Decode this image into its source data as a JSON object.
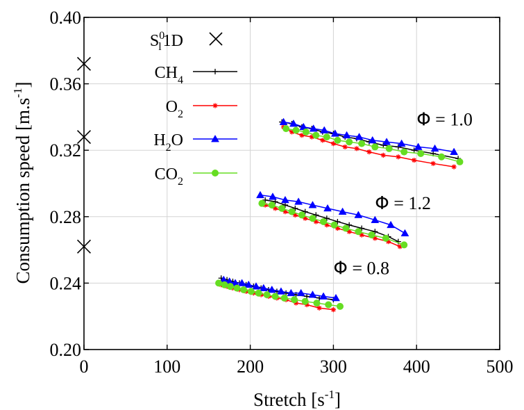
{
  "chart_data": {
    "type": "line",
    "title": "",
    "xlabel": "Stretch [s",
    "xlabel_sup": "-1",
    "xlabel_end": "]",
    "ylabel": "Consumption speed  [m.s",
    "ylabel_sup": "-1",
    "ylabel_end": "]",
    "xlim": [
      0,
      500
    ],
    "ylim": [
      0.2,
      0.4
    ],
    "xticks": [
      0,
      100,
      200,
      300,
      400,
      500
    ],
    "xtick_labels": [
      "0",
      "100",
      "200",
      "300",
      "400",
      "500"
    ],
    "yticks": [
      0.2,
      0.24,
      0.28,
      0.32,
      0.36,
      0.4
    ],
    "ytick_labels": [
      "0.20",
      "0.24",
      "0.28",
      "0.32",
      "0.36",
      "0.40"
    ],
    "grid": true,
    "legend_position": "top-left",
    "legend": [
      {
        "key": "s1d",
        "base": "S",
        "sup": "0",
        "sub": "l",
        "tail": "1D",
        "marker": "cross",
        "color": "#000000"
      },
      {
        "key": "ch4",
        "base": "CH",
        "sub": "4",
        "marker": "plus",
        "color": "#000000"
      },
      {
        "key": "o2",
        "base": "O",
        "sub": "2",
        "marker": "star",
        "color": "#ff0000"
      },
      {
        "key": "h2o",
        "base": "H",
        "sub": "2",
        "tail": "O",
        "marker": "triangle",
        "color": "#0000ff"
      },
      {
        "key": "co2",
        "base": "CO",
        "sub": "2",
        "marker": "circle",
        "color": "#66dd22"
      }
    ],
    "series": [
      {
        "name": "S_l^0 1D",
        "key": "s1d",
        "marker": "cross",
        "color": "#000000",
        "line": false,
        "x": [
          0,
          0,
          0
        ],
        "y": [
          0.372,
          0.328,
          0.262
        ]
      },
      {
        "name": "CH4",
        "key": "ch4",
        "group": "1.0",
        "marker": "plus",
        "color": "#000000",
        "line": true,
        "x": [
          238,
          250,
          262,
          274,
          287,
          300,
          314,
          328,
          343,
          360,
          378,
          397,
          420,
          450
        ],
        "y": [
          0.337,
          0.336,
          0.334,
          0.333,
          0.331,
          0.33,
          0.328,
          0.327,
          0.325,
          0.323,
          0.322,
          0.32,
          0.318,
          0.315
        ]
      },
      {
        "name": "O2",
        "key": "o2",
        "group": "1.0",
        "marker": "star",
        "color": "#ff0000",
        "line": true,
        "x": [
          240,
          250,
          262,
          274,
          287,
          300,
          314,
          328,
          343,
          360,
          378,
          397,
          420,
          445
        ],
        "y": [
          0.334,
          0.331,
          0.329,
          0.328,
          0.326,
          0.324,
          0.322,
          0.321,
          0.319,
          0.317,
          0.316,
          0.314,
          0.312,
          0.31
        ]
      },
      {
        "name": "H2O",
        "key": "h2o",
        "group": "1.0",
        "marker": "triangle",
        "color": "#0000ff",
        "line": true,
        "x": [
          240,
          252,
          264,
          276,
          289,
          302,
          316,
          331,
          347,
          364,
          382,
          402,
          422,
          445
        ],
        "y": [
          0.337,
          0.336,
          0.334,
          0.333,
          0.332,
          0.33,
          0.329,
          0.328,
          0.326,
          0.325,
          0.324,
          0.322,
          0.321,
          0.319
        ]
      },
      {
        "name": "CO2",
        "key": "co2",
        "group": "1.0",
        "marker": "circle",
        "color": "#66dd22",
        "line": true,
        "x": [
          243,
          255,
          267,
          279,
          292,
          305,
          319,
          334,
          350,
          367,
          385,
          405,
          430,
          452
        ],
        "y": [
          0.333,
          0.332,
          0.331,
          0.329,
          0.328,
          0.326,
          0.325,
          0.324,
          0.322,
          0.321,
          0.319,
          0.318,
          0.316,
          0.313
        ]
      },
      {
        "name": "CH4",
        "key": "ch4",
        "group": "1.2",
        "marker": "plus",
        "color": "#000000",
        "line": true,
        "x": [
          218,
          230,
          242,
          254,
          266,
          279,
          292,
          305,
          319,
          334,
          350,
          366,
          378
        ],
        "y": [
          0.29,
          0.289,
          0.287,
          0.285,
          0.283,
          0.281,
          0.279,
          0.277,
          0.275,
          0.273,
          0.271,
          0.268,
          0.265
        ]
      },
      {
        "name": "O2",
        "key": "o2",
        "group": "1.2",
        "marker": "star",
        "color": "#ff0000",
        "line": true,
        "x": [
          218,
          230,
          242,
          254,
          266,
          279,
          292,
          305,
          319,
          334,
          350,
          366,
          380
        ],
        "y": [
          0.287,
          0.285,
          0.283,
          0.281,
          0.279,
          0.277,
          0.275,
          0.273,
          0.271,
          0.269,
          0.267,
          0.265,
          0.262
        ]
      },
      {
        "name": "H2O",
        "key": "h2o",
        "group": "1.2",
        "marker": "triangle",
        "color": "#0000ff",
        "line": true,
        "x": [
          212,
          227,
          242,
          258,
          275,
          293,
          311,
          330,
          350,
          369,
          386
        ],
        "y": [
          0.293,
          0.292,
          0.29,
          0.289,
          0.287,
          0.285,
          0.283,
          0.281,
          0.278,
          0.275,
          0.27
        ]
      },
      {
        "name": "CO2",
        "key": "co2",
        "group": "1.2",
        "marker": "circle",
        "color": "#66dd22",
        "line": true,
        "x": [
          214,
          226,
          238,
          250,
          262,
          275,
          288,
          301,
          315,
          330,
          346,
          363,
          385
        ],
        "y": [
          0.288,
          0.287,
          0.285,
          0.283,
          0.281,
          0.279,
          0.277,
          0.275,
          0.273,
          0.271,
          0.269,
          0.267,
          0.263
        ]
      },
      {
        "name": "CH4",
        "key": "ch4",
        "group": "0.8",
        "marker": "plus",
        "color": "#000000",
        "line": true,
        "x": [
          165,
          172,
          179,
          187,
          195,
          204,
          213,
          222,
          232,
          243,
          255,
          268,
          283,
          300
        ],
        "y": [
          0.243,
          0.242,
          0.241,
          0.24,
          0.239,
          0.238,
          0.237,
          0.236,
          0.235,
          0.234,
          0.233,
          0.232,
          0.231,
          0.23
        ]
      },
      {
        "name": "O2",
        "key": "o2",
        "group": "0.8",
        "marker": "star",
        "color": "#ff0000",
        "line": true,
        "x": [
          165,
          172,
          179,
          187,
          195,
          204,
          213,
          222,
          232,
          243,
          255,
          268,
          283,
          300
        ],
        "y": [
          0.239,
          0.238,
          0.237,
          0.236,
          0.235,
          0.234,
          0.233,
          0.232,
          0.231,
          0.23,
          0.228,
          0.227,
          0.225,
          0.224
        ]
      },
      {
        "name": "H2O",
        "key": "h2o",
        "group": "0.8",
        "marker": "triangle",
        "color": "#0000ff",
        "line": true,
        "x": [
          168,
          175,
          182,
          190,
          198,
          207,
          216,
          226,
          237,
          249,
          261,
          275,
          288,
          303
        ],
        "y": [
          0.242,
          0.241,
          0.24,
          0.24,
          0.239,
          0.238,
          0.237,
          0.236,
          0.235,
          0.234,
          0.234,
          0.233,
          0.232,
          0.231
        ]
      },
      {
        "name": "CO2",
        "key": "co2",
        "group": "0.8",
        "marker": "circle",
        "color": "#66dd22",
        "line": true,
        "x": [
          162,
          169,
          176,
          184,
          192,
          201,
          210,
          220,
          230,
          241,
          253,
          266,
          280,
          294,
          308
        ],
        "y": [
          0.24,
          0.239,
          0.238,
          0.237,
          0.236,
          0.235,
          0.234,
          0.233,
          0.232,
          0.231,
          0.23,
          0.229,
          0.228,
          0.227,
          0.226
        ]
      }
    ],
    "annotations": [
      {
        "symbol": "Φ",
        "text": " = 1.0",
        "x": 400,
        "y": 0.335
      },
      {
        "symbol": "Φ",
        "text": " = 1.2",
        "x": 350,
        "y": 0.2845
      },
      {
        "symbol": "Φ",
        "text": " = 0.8",
        "x": 300,
        "y": 0.2455
      }
    ]
  }
}
